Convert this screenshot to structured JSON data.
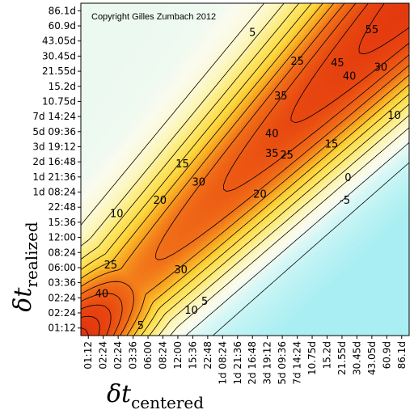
{
  "chart_data": {
    "type": "heatmap",
    "subtype": "contour",
    "copyright": "Copyright Gilles Zumbach 2012",
    "xlabel": {
      "symbol": "δt",
      "subscript": "centered"
    },
    "ylabel": {
      "symbol": "δt",
      "subscript": "realized"
    },
    "x_ticks": [
      "01:12",
      "02:24",
      "02:24",
      "03:36",
      "06:00",
      "08:24",
      "12:00",
      "15:36",
      "22:48",
      "1d 08:24",
      "1d 21:36",
      "2d 16:48",
      "3d 19:12",
      "5d 09:36",
      "7d 14:24",
      "10.75d",
      "15.2d",
      "21.55d",
      "30.45d",
      "43.05d",
      "60.9d",
      "86.1d"
    ],
    "y_ticks": [
      "01:12",
      "02:24",
      "02:24",
      "03:36",
      "06:00",
      "08:24",
      "12:00",
      "15:36",
      "22:48",
      "1d 08:24",
      "1d 21:36",
      "2d 16:48",
      "3d 19:12",
      "5d 09:36",
      "7d 14:24",
      "10.75d",
      "15.2d",
      "21.55d",
      "30.45d",
      "43.05d",
      "60.9d",
      "86.1d"
    ],
    "contour_levels": [
      -5,
      0,
      5,
      10,
      15,
      20,
      25,
      30,
      35,
      40,
      45,
      50,
      55
    ],
    "contour_labels": [
      {
        "text": "5",
        "x": 11.0,
        "y": 19.6
      },
      {
        "text": "25",
        "x": 14.0,
        "y": 17.7
      },
      {
        "text": "45",
        "x": 16.7,
        "y": 17.6
      },
      {
        "text": "55",
        "x": 19.0,
        "y": 19.8
      },
      {
        "text": "40",
        "x": 17.5,
        "y": 16.7
      },
      {
        "text": "30",
        "x": 19.6,
        "y": 17.3
      },
      {
        "text": "35",
        "x": 12.9,
        "y": 15.4
      },
      {
        "text": "10",
        "x": 20.5,
        "y": 14.1
      },
      {
        "text": "40",
        "x": 12.3,
        "y": 12.9
      },
      {
        "text": "15",
        "x": 16.3,
        "y": 12.2
      },
      {
        "text": "35",
        "x": 12.3,
        "y": 11.6
      },
      {
        "text": "25",
        "x": 13.3,
        "y": 11.5
      },
      {
        "text": "15",
        "x": 6.3,
        "y": 10.9
      },
      {
        "text": "0",
        "x": 17.4,
        "y": 10.0
      },
      {
        "text": "30",
        "x": 7.4,
        "y": 9.7
      },
      {
        "text": "20",
        "x": 11.5,
        "y": 8.9
      },
      {
        "text": "20",
        "x": 4.8,
        "y": 8.5
      },
      {
        "text": "-5",
        "x": 17.2,
        "y": 8.5
      },
      {
        "text": "10",
        "x": 1.9,
        "y": 7.6
      },
      {
        "text": "25",
        "x": 1.5,
        "y": 4.2
      },
      {
        "text": "30",
        "x": 6.2,
        "y": 3.9
      },
      {
        "text": "40",
        "x": 0.9,
        "y": 2.3
      },
      {
        "text": "10",
        "x": 6.9,
        "y": 1.2
      },
      {
        "text": "5",
        "x": 7.8,
        "y": 1.8
      },
      {
        "text": "5",
        "x": 3.5,
        "y": 0.2
      }
    ]
  },
  "colors": {
    "cyan": "#a8eef2",
    "white": "#fbfbf5",
    "light_yellow": "#fcf3a0",
    "yellow": "#fde050",
    "orange": "#f69a26",
    "red_orange": "#ea4a12",
    "red": "#e02b0e"
  }
}
